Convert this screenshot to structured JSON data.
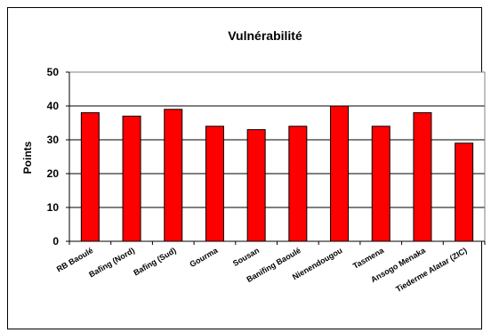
{
  "chart_data": {
    "type": "bar",
    "title": "Vulnérabilité",
    "xlabel": "",
    "ylabel": "Points",
    "ylim": [
      0,
      50
    ],
    "yticks": [
      0,
      10,
      20,
      30,
      40,
      50
    ],
    "grid": true,
    "legend": "none",
    "bar_color": "#FF0000",
    "bar_edge_color": "#000000",
    "plot_background": "#FFFFFF",
    "categories": [
      "RB Baoulé",
      "Bafing (Nord)",
      "Bafing (Sud)",
      "Gourma",
      "Sousan",
      "Banifing Baoulé",
      "Nienendougou",
      "Tasmena",
      "Ansogo Menaka",
      "Tiederme Alatar (ZIC)"
    ],
    "values": [
      38,
      37,
      39,
      34,
      33,
      34,
      40,
      34,
      38,
      29
    ]
  }
}
